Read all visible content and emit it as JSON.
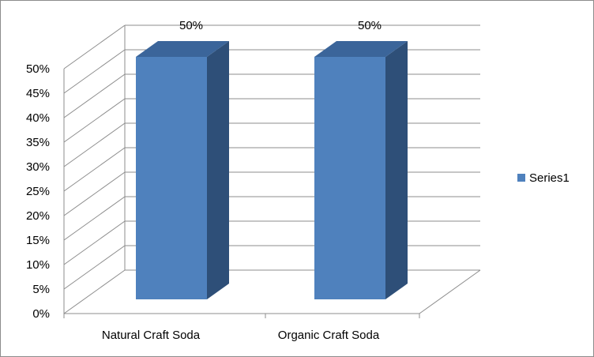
{
  "chart_data": {
    "type": "bar",
    "categories": [
      "Natural Craft Soda",
      "Organic Craft Soda"
    ],
    "series": [
      {
        "name": "Series1",
        "values": [
          50,
          50
        ],
        "labels": [
          "50%",
          "50%"
        ]
      }
    ],
    "y_ticks": [
      "0%",
      "5%",
      "10%",
      "15%",
      "20%",
      "25%",
      "30%",
      "35%",
      "40%",
      "45%",
      "50%"
    ],
    "ylim": [
      0,
      50
    ],
    "grid": true,
    "legend": "right",
    "three_d": true,
    "colors": {
      "bar_front": "#4f81bd",
      "bar_side": "#2e4f78",
      "bar_top": "#3b659a",
      "grid": "#8c8c8c",
      "axis": "#8c8c8c"
    }
  }
}
